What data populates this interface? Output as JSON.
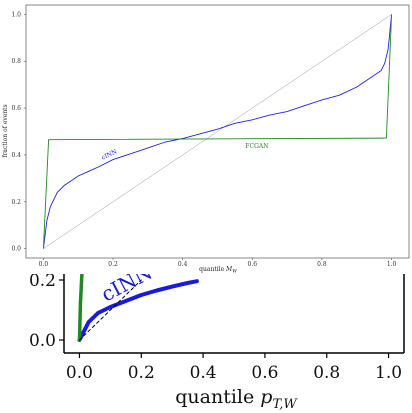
{
  "chart_data": [
    {
      "type": "line",
      "xlabel": "quantile M_W",
      "ylabel": "fraction of events",
      "xlim": [
        -0.05,
        1.05
      ],
      "ylim": [
        -0.04,
        1.04
      ],
      "x_ticks": [
        "0.0",
        "0.2",
        "0.4",
        "0.6",
        "0.8",
        "1.0"
      ],
      "y_ticks": [
        "0.0",
        "0.2",
        "0.4",
        "0.6",
        "0.8",
        "1.0"
      ],
      "grid": false,
      "series": [
        {
          "name": "",
          "color": "#999999",
          "x": [
            0.0,
            1.0
          ],
          "y": [
            0.0,
            1.0
          ]
        },
        {
          "name": "cINN",
          "color": "#2222dd",
          "label_at": [
            0.17,
            0.38
          ],
          "x": [
            0.0,
            0.01,
            0.02,
            0.04,
            0.06,
            0.08,
            0.1,
            0.13,
            0.16,
            0.2,
            0.25,
            0.3,
            0.35,
            0.4,
            0.45,
            0.5,
            0.55,
            0.6,
            0.65,
            0.7,
            0.75,
            0.8,
            0.85,
            0.9,
            0.93,
            0.95,
            0.97,
            0.98,
            0.99,
            1.0
          ],
          "y": [
            0.0,
            0.12,
            0.18,
            0.24,
            0.27,
            0.29,
            0.31,
            0.33,
            0.35,
            0.38,
            0.405,
            0.43,
            0.455,
            0.47,
            0.49,
            0.51,
            0.535,
            0.55,
            0.57,
            0.585,
            0.61,
            0.635,
            0.655,
            0.69,
            0.72,
            0.74,
            0.76,
            0.79,
            0.85,
            1.0
          ]
        },
        {
          "name": "FCGAN",
          "color": "#228822",
          "label_at": [
            0.58,
            0.43
          ],
          "x": [
            0.0,
            0.015,
            0.985,
            1.0
          ],
          "y": [
            0.0,
            0.465,
            0.472,
            1.0
          ]
        }
      ]
    },
    {
      "type": "line",
      "xlabel": "quantile p_T,W",
      "x_ticks": [
        "0.0",
        "0.2",
        "0.4",
        "0.6",
        "0.8",
        "1.0"
      ],
      "y_ticks": [
        "0.0",
        "0.2"
      ],
      "xlim": [
        -0.05,
        1.05
      ],
      "ylim": [
        -0.02,
        0.2
      ],
      "series": [
        {
          "name": "cINN",
          "color": "#1a1add",
          "x": [
            0.0,
            0.03,
            0.06,
            0.1,
            0.15,
            0.2,
            0.25,
            0.3,
            0.35,
            0.38
          ],
          "y": [
            0.0,
            0.06,
            0.09,
            0.11,
            0.13,
            0.15,
            0.165,
            0.178,
            0.19,
            0.196
          ]
        },
        {
          "name": "",
          "color": "#228822",
          "x": [
            0.0,
            0.003,
            0.01
          ],
          "y": [
            0.0,
            0.12,
            0.26
          ]
        },
        {
          "name": "",
          "color": "#000000",
          "dashed": true,
          "x": [
            0.0,
            0.2
          ],
          "y": [
            0.0,
            0.2
          ]
        }
      ]
    }
  ]
}
